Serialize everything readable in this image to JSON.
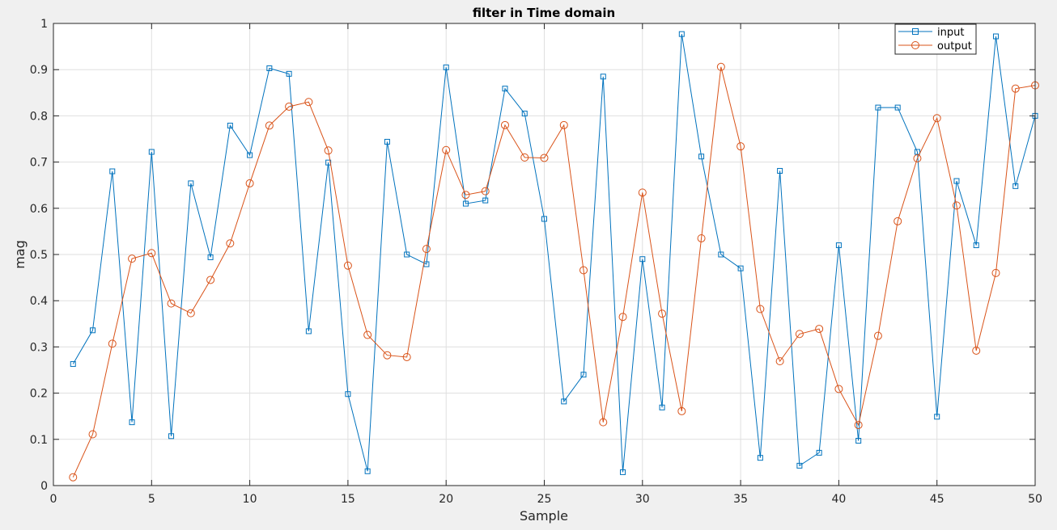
{
  "chart_data": {
    "type": "line",
    "title": "filter in Time domain",
    "xlabel": "Sample",
    "ylabel": "mag",
    "xlim": [
      0,
      50
    ],
    "ylim": [
      0,
      1
    ],
    "xticks": [
      0,
      5,
      10,
      15,
      20,
      25,
      30,
      35,
      40,
      45,
      50
    ],
    "yticks": [
      0,
      0.1,
      0.2,
      0.3,
      0.4,
      0.5,
      0.6,
      0.7,
      0.8,
      0.9,
      1
    ],
    "ytick_labels": [
      "0",
      "0.1",
      "0.2",
      "0.3",
      "0.4",
      "0.5",
      "0.6",
      "0.7",
      "0.8",
      "0.9",
      "1"
    ],
    "grid": true,
    "legend_position": "top-right",
    "x": [
      1,
      2,
      3,
      4,
      5,
      6,
      7,
      8,
      9,
      10,
      11,
      12,
      13,
      14,
      15,
      16,
      17,
      18,
      19,
      20,
      21,
      22,
      23,
      24,
      25,
      26,
      27,
      28,
      29,
      30,
      31,
      32,
      33,
      34,
      35,
      36,
      37,
      38,
      39,
      40,
      41,
      42,
      43,
      44,
      45,
      46,
      47,
      48,
      49,
      50
    ],
    "series": [
      {
        "name": "input",
        "color": "#0072bd",
        "marker": "square",
        "values": [
          0.263,
          0.336,
          0.68,
          0.137,
          0.722,
          0.107,
          0.654,
          0.494,
          0.779,
          0.715,
          0.903,
          0.891,
          0.334,
          0.699,
          0.198,
          0.031,
          0.744,
          0.5,
          0.479,
          0.905,
          0.61,
          0.617,
          0.859,
          0.805,
          0.577,
          0.182,
          0.24,
          0.885,
          0.029,
          0.49,
          0.169,
          0.977,
          0.712,
          0.5,
          0.47,
          0.06,
          0.681,
          0.043,
          0.071,
          0.52,
          0.097,
          0.818,
          0.818,
          0.722,
          0.149,
          0.659,
          0.52,
          0.972,
          0.648,
          0.8
        ]
      },
      {
        "name": "output",
        "color": "#d95319",
        "marker": "circle",
        "values": [
          0.018,
          0.111,
          0.307,
          0.491,
          0.503,
          0.394,
          0.373,
          0.445,
          0.524,
          0.654,
          0.779,
          0.82,
          0.83,
          0.725,
          0.476,
          0.326,
          0.282,
          0.278,
          0.512,
          0.726,
          0.629,
          0.637,
          0.78,
          0.71,
          0.709,
          0.78,
          0.466,
          0.137,
          0.365,
          0.634,
          0.372,
          0.161,
          0.535,
          0.906,
          0.734,
          0.382,
          0.269,
          0.328,
          0.339,
          0.209,
          0.131,
          0.324,
          0.572,
          0.708,
          0.795,
          0.606,
          0.292,
          0.46,
          0.859,
          0.866
        ]
      }
    ]
  }
}
